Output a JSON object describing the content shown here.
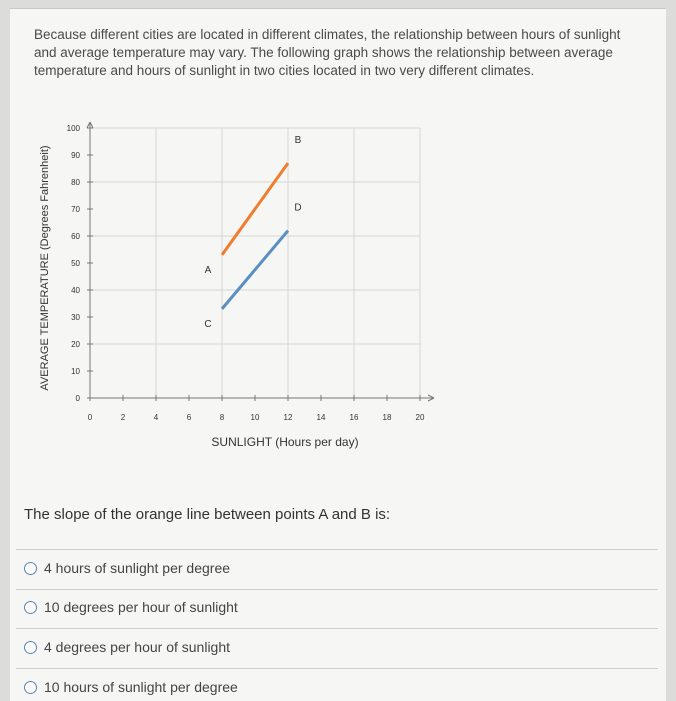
{
  "intro_text": "Because different cities are located in different climates, the relationship between hours of sunlight and average temperature may vary. The following graph shows the relationship between average temperature and hours of sunlight in two cities located in two very different climates.",
  "colors": {
    "orange": "#ef7d2e",
    "blue": "#5b8fc2",
    "grid": "#d6d6d6"
  },
  "chart_data": {
    "type": "line",
    "title": "",
    "xlabel": "SUNLIGHT (Hours per day)",
    "ylabel": "AVERAGE TEMPERATURE (Degrees Fahrenheit)",
    "xlim": [
      0,
      20
    ],
    "ylim": [
      0,
      100
    ],
    "xticks": [
      0,
      2,
      4,
      6,
      8,
      10,
      12,
      14,
      16,
      18,
      20
    ],
    "yticks": [
      0,
      10,
      20,
      30,
      40,
      50,
      60,
      70,
      80,
      90,
      100
    ],
    "grid": true,
    "series": [
      {
        "color": "orange",
        "points": [
          [
            8,
            53
          ],
          [
            12,
            87
          ]
        ],
        "labels": [
          "A",
          "B"
        ]
      },
      {
        "color": "blue",
        "points": [
          [
            8,
            33
          ],
          [
            12,
            62
          ]
        ],
        "labels": [
          "C",
          "D"
        ]
      }
    ]
  },
  "question": "The slope of the orange line between points A and B is:",
  "options": [
    "4 hours of sunlight per degree",
    "10 degrees per hour of sunlight",
    "4 degrees per hour of sunlight",
    "10 hours of sunlight per degree"
  ]
}
